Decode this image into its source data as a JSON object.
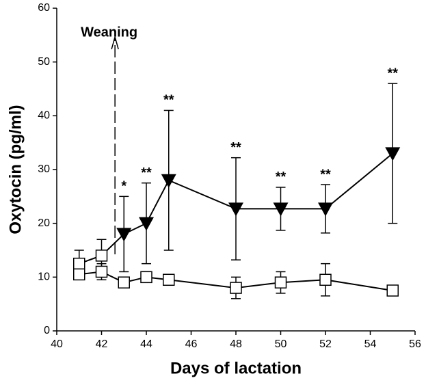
{
  "chart_data": {
    "type": "line",
    "x_label": "Days of lactation",
    "y_label": "Oxytocin (pg/ml)",
    "xlim": [
      40,
      56
    ],
    "xticks": [
      40,
      42,
      44,
      46,
      48,
      50,
      52,
      54,
      56
    ],
    "ylim": [
      0,
      60
    ],
    "yticks": [
      0,
      10,
      20,
      30,
      40,
      50,
      60
    ],
    "annotation": {
      "label": "Weaning",
      "x": 42.6
    },
    "series": [
      {
        "color": "#000000",
        "x": [
          41,
          42,
          43,
          44,
          45,
          48,
          50,
          52,
          55
        ],
        "markers": [
          "square",
          "square",
          "triangle",
          "triangle",
          "triangle",
          "triangle",
          "triangle",
          "triangle",
          "triangle"
        ],
        "values": [
          12.5,
          14,
          18,
          20,
          28,
          22.7,
          22.7,
          22.7,
          33
        ],
        "errors": [
          2.5,
          3,
          7,
          7.5,
          13,
          9.5,
          4,
          4.5,
          13
        ],
        "sig_labels": [
          null,
          null,
          "*",
          "**",
          "**",
          "**",
          "**",
          "**",
          "**"
        ]
      },
      {
        "color": "#000000",
        "x": [
          41,
          42,
          43,
          44,
          45,
          48,
          50,
          52,
          55
        ],
        "markers": [
          "square",
          "square",
          "square",
          "square",
          "square",
          "square",
          "square",
          "square",
          "square"
        ],
        "values": [
          10.5,
          11,
          9,
          10,
          9.5,
          8,
          9,
          9.5,
          7.5
        ],
        "errors": [
          1,
          1.5,
          0.5,
          1,
          1,
          2,
          2,
          3,
          0.5
        ]
      }
    ]
  }
}
